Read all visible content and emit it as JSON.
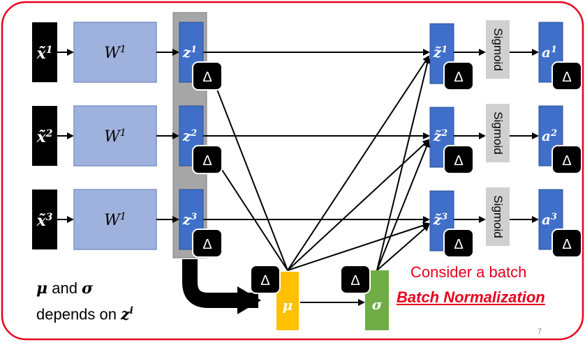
{
  "inputs": [
    {
      "label": "x̃",
      "sup": "1"
    },
    {
      "label": "x̃",
      "sup": "2"
    },
    {
      "label": "x̃",
      "sup": "3"
    }
  ],
  "weights": [
    {
      "label": "W",
      "sup": "1"
    },
    {
      "label": "W",
      "sup": "1"
    },
    {
      "label": "W",
      "sup": "1"
    }
  ],
  "z_nodes": [
    {
      "label": "z",
      "sup": "1"
    },
    {
      "label": "z",
      "sup": "2"
    },
    {
      "label": "z",
      "sup": "3"
    }
  ],
  "z_tilde_nodes": [
    {
      "label": "z̃",
      "sup": "1"
    },
    {
      "label": "z̃",
      "sup": "2"
    },
    {
      "label": "z̃",
      "sup": "3"
    }
  ],
  "sigmoid_label": "Sigmoid",
  "a_nodes": [
    {
      "label": "a",
      "sup": "1"
    },
    {
      "label": "a",
      "sup": "2"
    },
    {
      "label": "a",
      "sup": "3"
    }
  ],
  "delta_label": "Δ",
  "mu_label": "μ",
  "sigma_label": "σ",
  "note": {
    "mu": "μ",
    "and": " and ",
    "sigma": "σ",
    "line2": "depends on ",
    "z": "z",
    "zsup": "i"
  },
  "consider_text": "Consider a batch",
  "batch_norm_text": "Batch Normalization",
  "page_number": "7",
  "colors": {
    "border_red": "#e8001c",
    "input_black": "#000000",
    "weight_fill": "#9fb2dd",
    "weight_border": "#7b93c9",
    "node_blue": "#3f6fc8",
    "group_gray": "#a6a6a6",
    "sigmoid_gray": "#d0d0d0",
    "mu_yellow": "#ffc000",
    "sigma_green": "#70ad47"
  }
}
